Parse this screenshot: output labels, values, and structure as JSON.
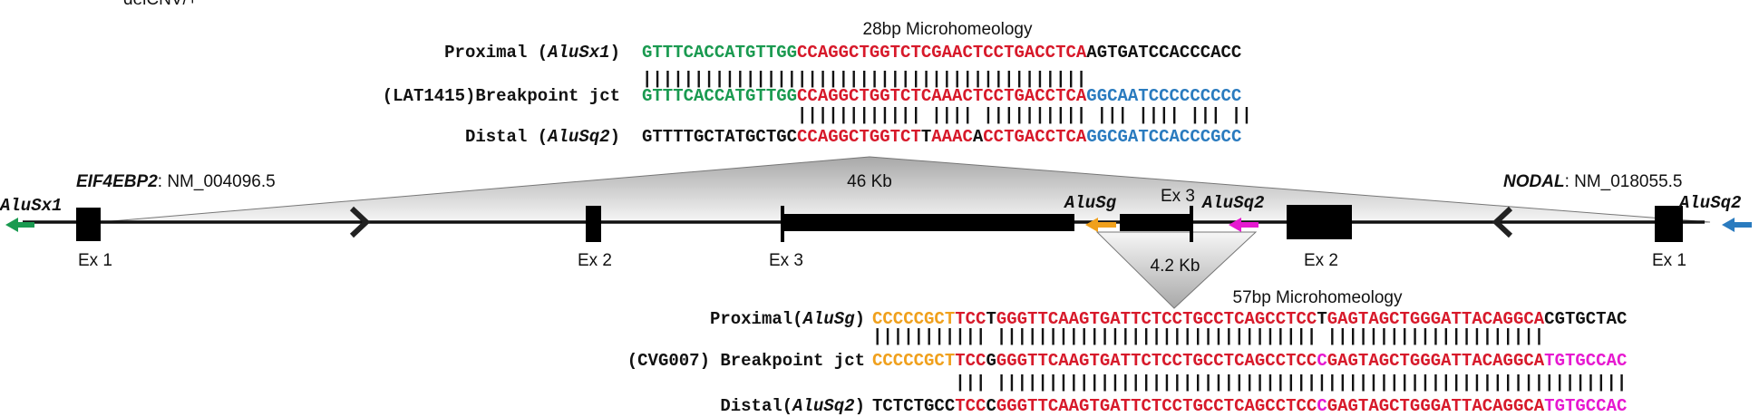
{
  "header": "delCNV/+",
  "junctions": [
    {
      "title": "28bp Microhomeology",
      "rows": [
        {
          "label": [
            {
              "text": "Proximal ("
            },
            {
              "text": "AluSx1",
              "italic": true
            },
            {
              "text": ")"
            }
          ],
          "segments": [
            {
              "text": "GTTTCACCATGTTGG",
              "color": "#1a9a50"
            },
            {
              "text": "CCAGGCTGGTCTCGAACTCCTGACCTCA",
              "color": "#d7192a"
            },
            {
              "text": "AGTGATCCACCCACC",
              "color": "#111111"
            }
          ]
        },
        {
          "match": "|||||||||||||||||||||||||||||||||||||||||||"
        },
        {
          "label": [
            {
              "text": "(LAT1415)Breakpoint jct"
            }
          ],
          "segments": [
            {
              "text": "GTTTCACCATGTTGG",
              "color": "#1a9a50"
            },
            {
              "text": "CCAGGCTGGTCTCAAACTCCTGACCTCA",
              "color": "#d7192a"
            },
            {
              "text": "GGCAATCCCCCCCCC",
              "color": "#2a7bbf"
            }
          ]
        },
        {
          "match": "               |||||||||||| |||| |||||||||| ||| |||| ||| ||"
        },
        {
          "label": [
            {
              "text": "Distal ("
            },
            {
              "text": "AluSq2",
              "italic": true
            },
            {
              "text": ")"
            }
          ],
          "segments": [
            {
              "text": "GTTTTGCTATGCTGC",
              "color": "#111111"
            },
            {
              "text": "CCAGGCTGGTCT",
              "color": "#d7192a"
            },
            {
              "text": "T",
              "color": "#111111"
            },
            {
              "text": "AAAC",
              "color": "#d7192a"
            },
            {
              "text": "A",
              "color": "#111111"
            },
            {
              "text": "CCTGACCTCA",
              "color": "#d7192a"
            },
            {
              "text": "GGCGATCCACCCGCC",
              "color": "#2a7bbf"
            }
          ]
        }
      ]
    },
    {
      "title": "57bp Microhomeology",
      "rows": [
        {
          "label": [
            {
              "text": "Proximal("
            },
            {
              "text": "AluSg",
              "italic": true
            },
            {
              "text": ")"
            }
          ],
          "segments": [
            {
              "text": "CCCCCGCT",
              "color": "#f0a01c"
            },
            {
              "text": "TCC",
              "color": "#d7192a"
            },
            {
              "text": "T",
              "color": "#111111"
            },
            {
              "text": "GGGTTCAAGTGATTCTCCTGCCTCAGCCTCC",
              "color": "#d7192a"
            },
            {
              "text": "T",
              "color": "#111111"
            },
            {
              "text": "GAGTAGCTGGGATTACAGGCA",
              "color": "#d7192a"
            },
            {
              "text": "CGTGCTAC",
              "color": "#111111"
            }
          ]
        },
        {
          "match": "||||||||||| ||||||||||||||||||||||||||||||| |||||||||||||||||||||"
        },
        {
          "label": [
            {
              "text": "(CVG007) Breakpoint jct"
            }
          ],
          "segments": [
            {
              "text": "CCCCCGCT",
              "color": "#f0a01c"
            },
            {
              "text": "TCC",
              "color": "#d7192a"
            },
            {
              "text": "G",
              "color": "#111111"
            },
            {
              "text": "GGGTTCAAGTGATTCTCCTGCCTCAGCCTCC",
              "color": "#d7192a"
            },
            {
              "text": "C",
              "color": "#e619d0"
            },
            {
              "text": "GAGTAGCTGGGATTACAGGCA",
              "color": "#d7192a"
            },
            {
              "text": "TGTGCCAC",
              "color": "#e619d0"
            }
          ]
        },
        {
          "match": "        ||| |||||||||||||||||||||||||||||||||||||||||||||||||||||||||||||"
        },
        {
          "label": [
            {
              "text": "Distal("
            },
            {
              "text": "AluSq2",
              "italic": true
            },
            {
              "text": ")"
            }
          ],
          "segments": [
            {
              "text": "TCTCTGCC",
              "color": "#111111"
            },
            {
              "text": "TCC",
              "color": "#d7192a"
            },
            {
              "text": "C",
              "color": "#111111"
            },
            {
              "text": "GGGTTCAAGTGATTCTCCTGCCTCAGCCTCC",
              "color": "#d7192a"
            },
            {
              "text": "C",
              "color": "#e619d0"
            },
            {
              "text": "GAGTAGCTGGGATTACAGGCA",
              "color": "#d7192a"
            },
            {
              "text": "TGTGCCAC",
              "color": "#e619d0"
            }
          ]
        }
      ]
    }
  ],
  "sizes": [
    "46 Kb",
    "4.2 Kb"
  ],
  "genes": [
    {
      "symbol": "EIF4EBP2",
      "accession": ": NM_004096.5"
    },
    {
      "symbol": "NODAL",
      "accession": ": NM_018055.5"
    }
  ],
  "exons": [
    "Ex 1",
    "Ex 2",
    "Ex 3",
    "Ex 3",
    "Ex 2",
    "Ex 1"
  ],
  "alus": [
    {
      "text": "AluSx1",
      "color": "#1a9a50"
    },
    {
      "text": "AluSg",
      "color": "#f0a01c"
    },
    {
      "text": "AluSq2",
      "color": "#e619d0"
    },
    {
      "text": "AluSq2",
      "color": "#2a7bbf"
    }
  ]
}
